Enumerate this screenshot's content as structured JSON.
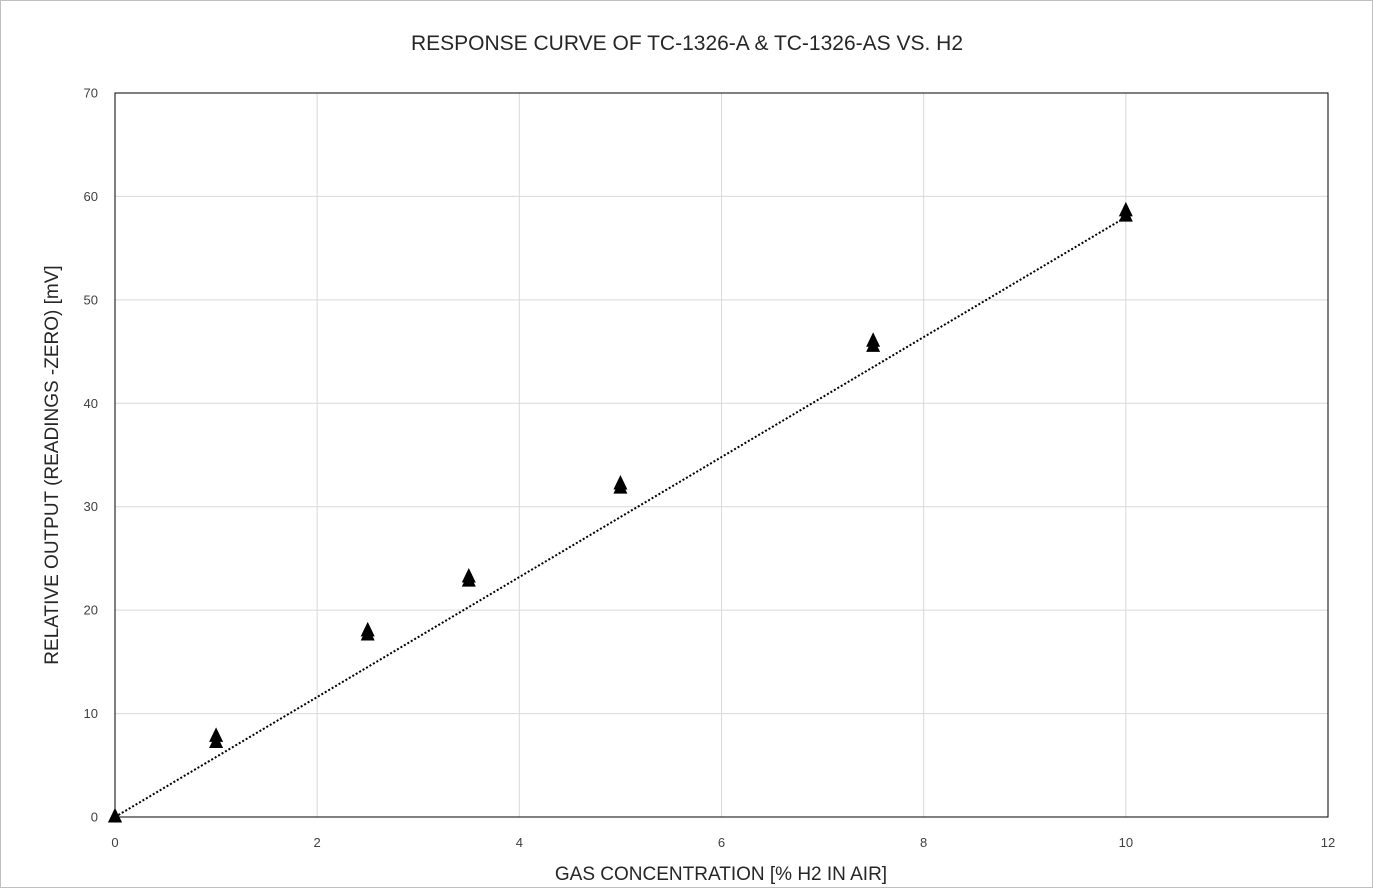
{
  "chart_data": {
    "type": "scatter",
    "title": "RESPONSE CURVE OF TC-1326-A & TC-1326-AS VS. H2",
    "xlabel": "GAS CONCENTRATION [% H2 IN AIR]",
    "ylabel": "RELATIVE OUTPUT (READINGS -ZERO) [mV]",
    "xlim": [
      0,
      12
    ],
    "ylim": [
      0,
      70
    ],
    "xticks": [
      "0",
      "2",
      "4",
      "6",
      "8",
      "10",
      "12"
    ],
    "yticks": [
      "0",
      "10",
      "20",
      "30",
      "40",
      "50",
      "60",
      "70"
    ],
    "grid": true,
    "legend": false,
    "marker": "triangle",
    "marker_color": "#000000",
    "trendline": {
      "style": "dotted",
      "color": "#000000",
      "x": [
        0,
        10
      ],
      "y": [
        0,
        58
      ]
    },
    "series": [
      {
        "x": [
          0,
          1,
          2.5,
          3.5,
          5,
          7.5,
          10
        ],
        "y": [
          0,
          7.8,
          18,
          23.2,
          32.2,
          46,
          58.6
        ]
      },
      {
        "x": [
          0,
          1,
          2.5,
          3.5,
          5,
          7.5,
          10
        ],
        "y": [
          0,
          7.2,
          17.6,
          22.8,
          31.8,
          45.5,
          58.1
        ]
      }
    ]
  }
}
